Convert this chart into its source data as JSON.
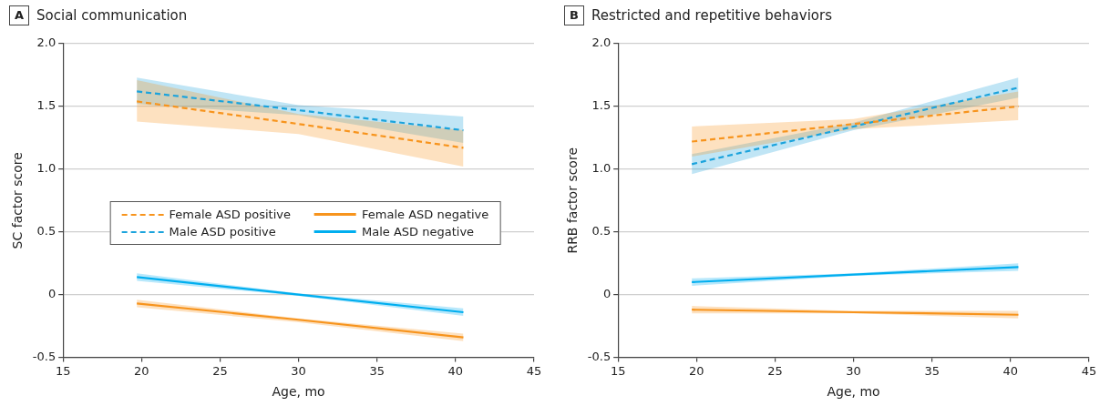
{
  "chart_data": [
    {
      "type": "line",
      "title": "Social communication",
      "annotations": [
        "A"
      ],
      "xlabel": "Age, mo",
      "ylabel": "SC factor score",
      "xlim": [
        15,
        45
      ],
      "xticks": [
        15,
        20,
        25,
        30,
        35,
        40,
        45
      ],
      "ylim": [
        -0.5,
        2
      ],
      "yticks": [
        {
          "value": -0.5,
          "label": "-0.5"
        },
        0,
        {
          "value": 0.5,
          "label": "0.5"
        },
        {
          "value": 1,
          "label": "1.0"
        },
        {
          "value": 1.5,
          "label": "1.5"
        },
        {
          "value": 2,
          "label": "2.0"
        }
      ],
      "grid": "y",
      "legend": "center",
      "marker": "none",
      "series": [
        {
          "name": "Female ASD positive",
          "color": "#f7941d",
          "line_style": "dashed",
          "x": [
            19.7,
            30,
            40.5
          ],
          "values": [
            1.54,
            1.36,
            1.17
          ],
          "lower": [
            1.38,
            1.28,
            1.02
          ],
          "upper": [
            1.71,
            1.44,
            1.31
          ]
        },
        {
          "name": "Male ASD positive",
          "color": "#1ba3dc",
          "line_style": "dashed",
          "x": [
            19.7,
            30,
            40.5
          ],
          "values": [
            1.62,
            1.47,
            1.31
          ],
          "lower": [
            1.52,
            1.43,
            1.21
          ],
          "upper": [
            1.73,
            1.51,
            1.42
          ]
        },
        {
          "name": "Female ASD negative",
          "color": "#f7941d",
          "line_style": "solid",
          "x": [
            19.7,
            30,
            40.5
          ],
          "values": [
            -0.07,
            -0.2,
            -0.34
          ],
          "lower": [
            -0.1,
            -0.22,
            -0.37
          ],
          "upper": [
            -0.04,
            -0.19,
            -0.31
          ]
        },
        {
          "name": "Male ASD negative",
          "color": "#00aeef",
          "line_style": "solid",
          "x": [
            19.7,
            30,
            40.5
          ],
          "values": [
            0.14,
            0.0,
            -0.14
          ],
          "lower": [
            0.11,
            -0.01,
            -0.17
          ],
          "upper": [
            0.17,
            0.01,
            -0.11
          ]
        }
      ]
    },
    {
      "type": "line",
      "title": "Restricted and repetitive behaviors",
      "annotations": [
        "B"
      ],
      "xlabel": "Age, mo",
      "ylabel": "RRB factor score",
      "xlim": [
        15,
        45
      ],
      "xticks": [
        15,
        20,
        25,
        30,
        35,
        40,
        45
      ],
      "ylim": [
        -0.5,
        2
      ],
      "yticks": [
        {
          "value": -0.5,
          "label": "-0.5"
        },
        0,
        {
          "value": 0.5,
          "label": "0.5"
        },
        {
          "value": 1,
          "label": "1.0"
        },
        {
          "value": 1.5,
          "label": "1.5"
        },
        {
          "value": 2,
          "label": "2.0"
        }
      ],
      "grid": "y",
      "legend": false,
      "marker": "none",
      "series": [
        {
          "color": "#f7941d",
          "line_style": "dashed",
          "x": [
            19.7,
            30,
            40.5
          ],
          "values": [
            1.22,
            1.36,
            1.5
          ],
          "lower": [
            1.1,
            1.32,
            1.39
          ],
          "upper": [
            1.34,
            1.4,
            1.62
          ]
        },
        {
          "color": "#1ba3dc",
          "line_style": "dashed",
          "x": [
            19.7,
            30,
            40.5
          ],
          "values": [
            1.04,
            1.34,
            1.65
          ],
          "lower": [
            0.96,
            1.31,
            1.57
          ],
          "upper": [
            1.12,
            1.37,
            1.73
          ]
        },
        {
          "color": "#f7941d",
          "line_style": "solid",
          "x": [
            19.7,
            30,
            40.5
          ],
          "values": [
            -0.12,
            -0.14,
            -0.16
          ],
          "lower": [
            -0.15,
            -0.15,
            -0.19
          ],
          "upper": [
            -0.09,
            -0.13,
            -0.13
          ]
        },
        {
          "color": "#00aeef",
          "line_style": "solid",
          "x": [
            19.7,
            30,
            40.5
          ],
          "values": [
            0.1,
            0.16,
            0.22
          ],
          "lower": [
            0.07,
            0.15,
            0.19
          ],
          "upper": [
            0.13,
            0.17,
            0.25
          ]
        }
      ]
    }
  ]
}
